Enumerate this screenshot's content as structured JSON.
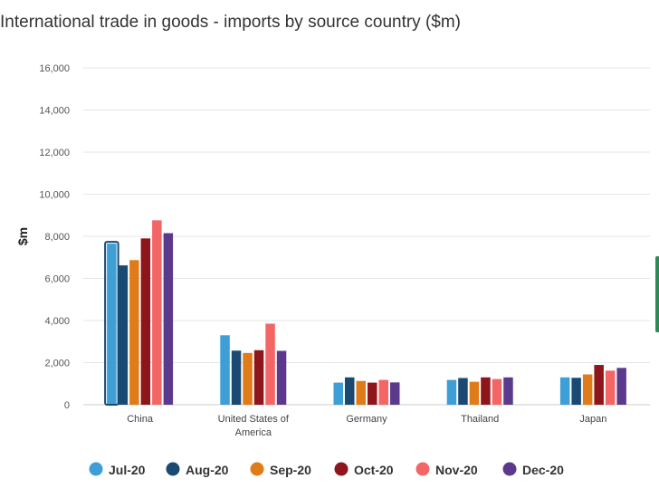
{
  "chart_data": {
    "type": "bar",
    "title": "International trade in goods - imports by source country ($m)",
    "ylabel": "$m",
    "xlabel": "",
    "ylim": [
      0,
      16000
    ],
    "yticks": [
      0,
      2000,
      4000,
      6000,
      8000,
      10000,
      12000,
      14000,
      16000
    ],
    "ytick_labels": [
      "0",
      "2,000",
      "4,000",
      "6,000",
      "8,000",
      "10,000",
      "12,000",
      "14,000",
      "16,000"
    ],
    "grid": true,
    "legend_position": "bottom",
    "categories": [
      "China",
      "United States of America",
      "Germany",
      "Thailand",
      "Japan"
    ],
    "series": [
      {
        "name": "Jul-20",
        "color": "#3d9fd6",
        "values": [
          7650,
          3300,
          1050,
          1180,
          1300
        ]
      },
      {
        "name": "Aug-20",
        "color": "#1a4a73",
        "values": [
          6620,
          2570,
          1300,
          1270,
          1280
        ]
      },
      {
        "name": "Sep-20",
        "color": "#e07b1a",
        "values": [
          6870,
          2460,
          1130,
          1090,
          1440
        ]
      },
      {
        "name": "Oct-20",
        "color": "#8e1519",
        "values": [
          7900,
          2590,
          1050,
          1300,
          1890
        ]
      },
      {
        "name": "Nov-20",
        "color": "#f46565",
        "values": [
          8760,
          3850,
          1180,
          1220,
          1620
        ]
      },
      {
        "name": "Dec-20",
        "color": "#5b3a8e",
        "values": [
          8150,
          2560,
          1060,
          1300,
          1750
        ]
      }
    ],
    "highlighted": {
      "series": "Jul-20",
      "category": "China"
    }
  }
}
